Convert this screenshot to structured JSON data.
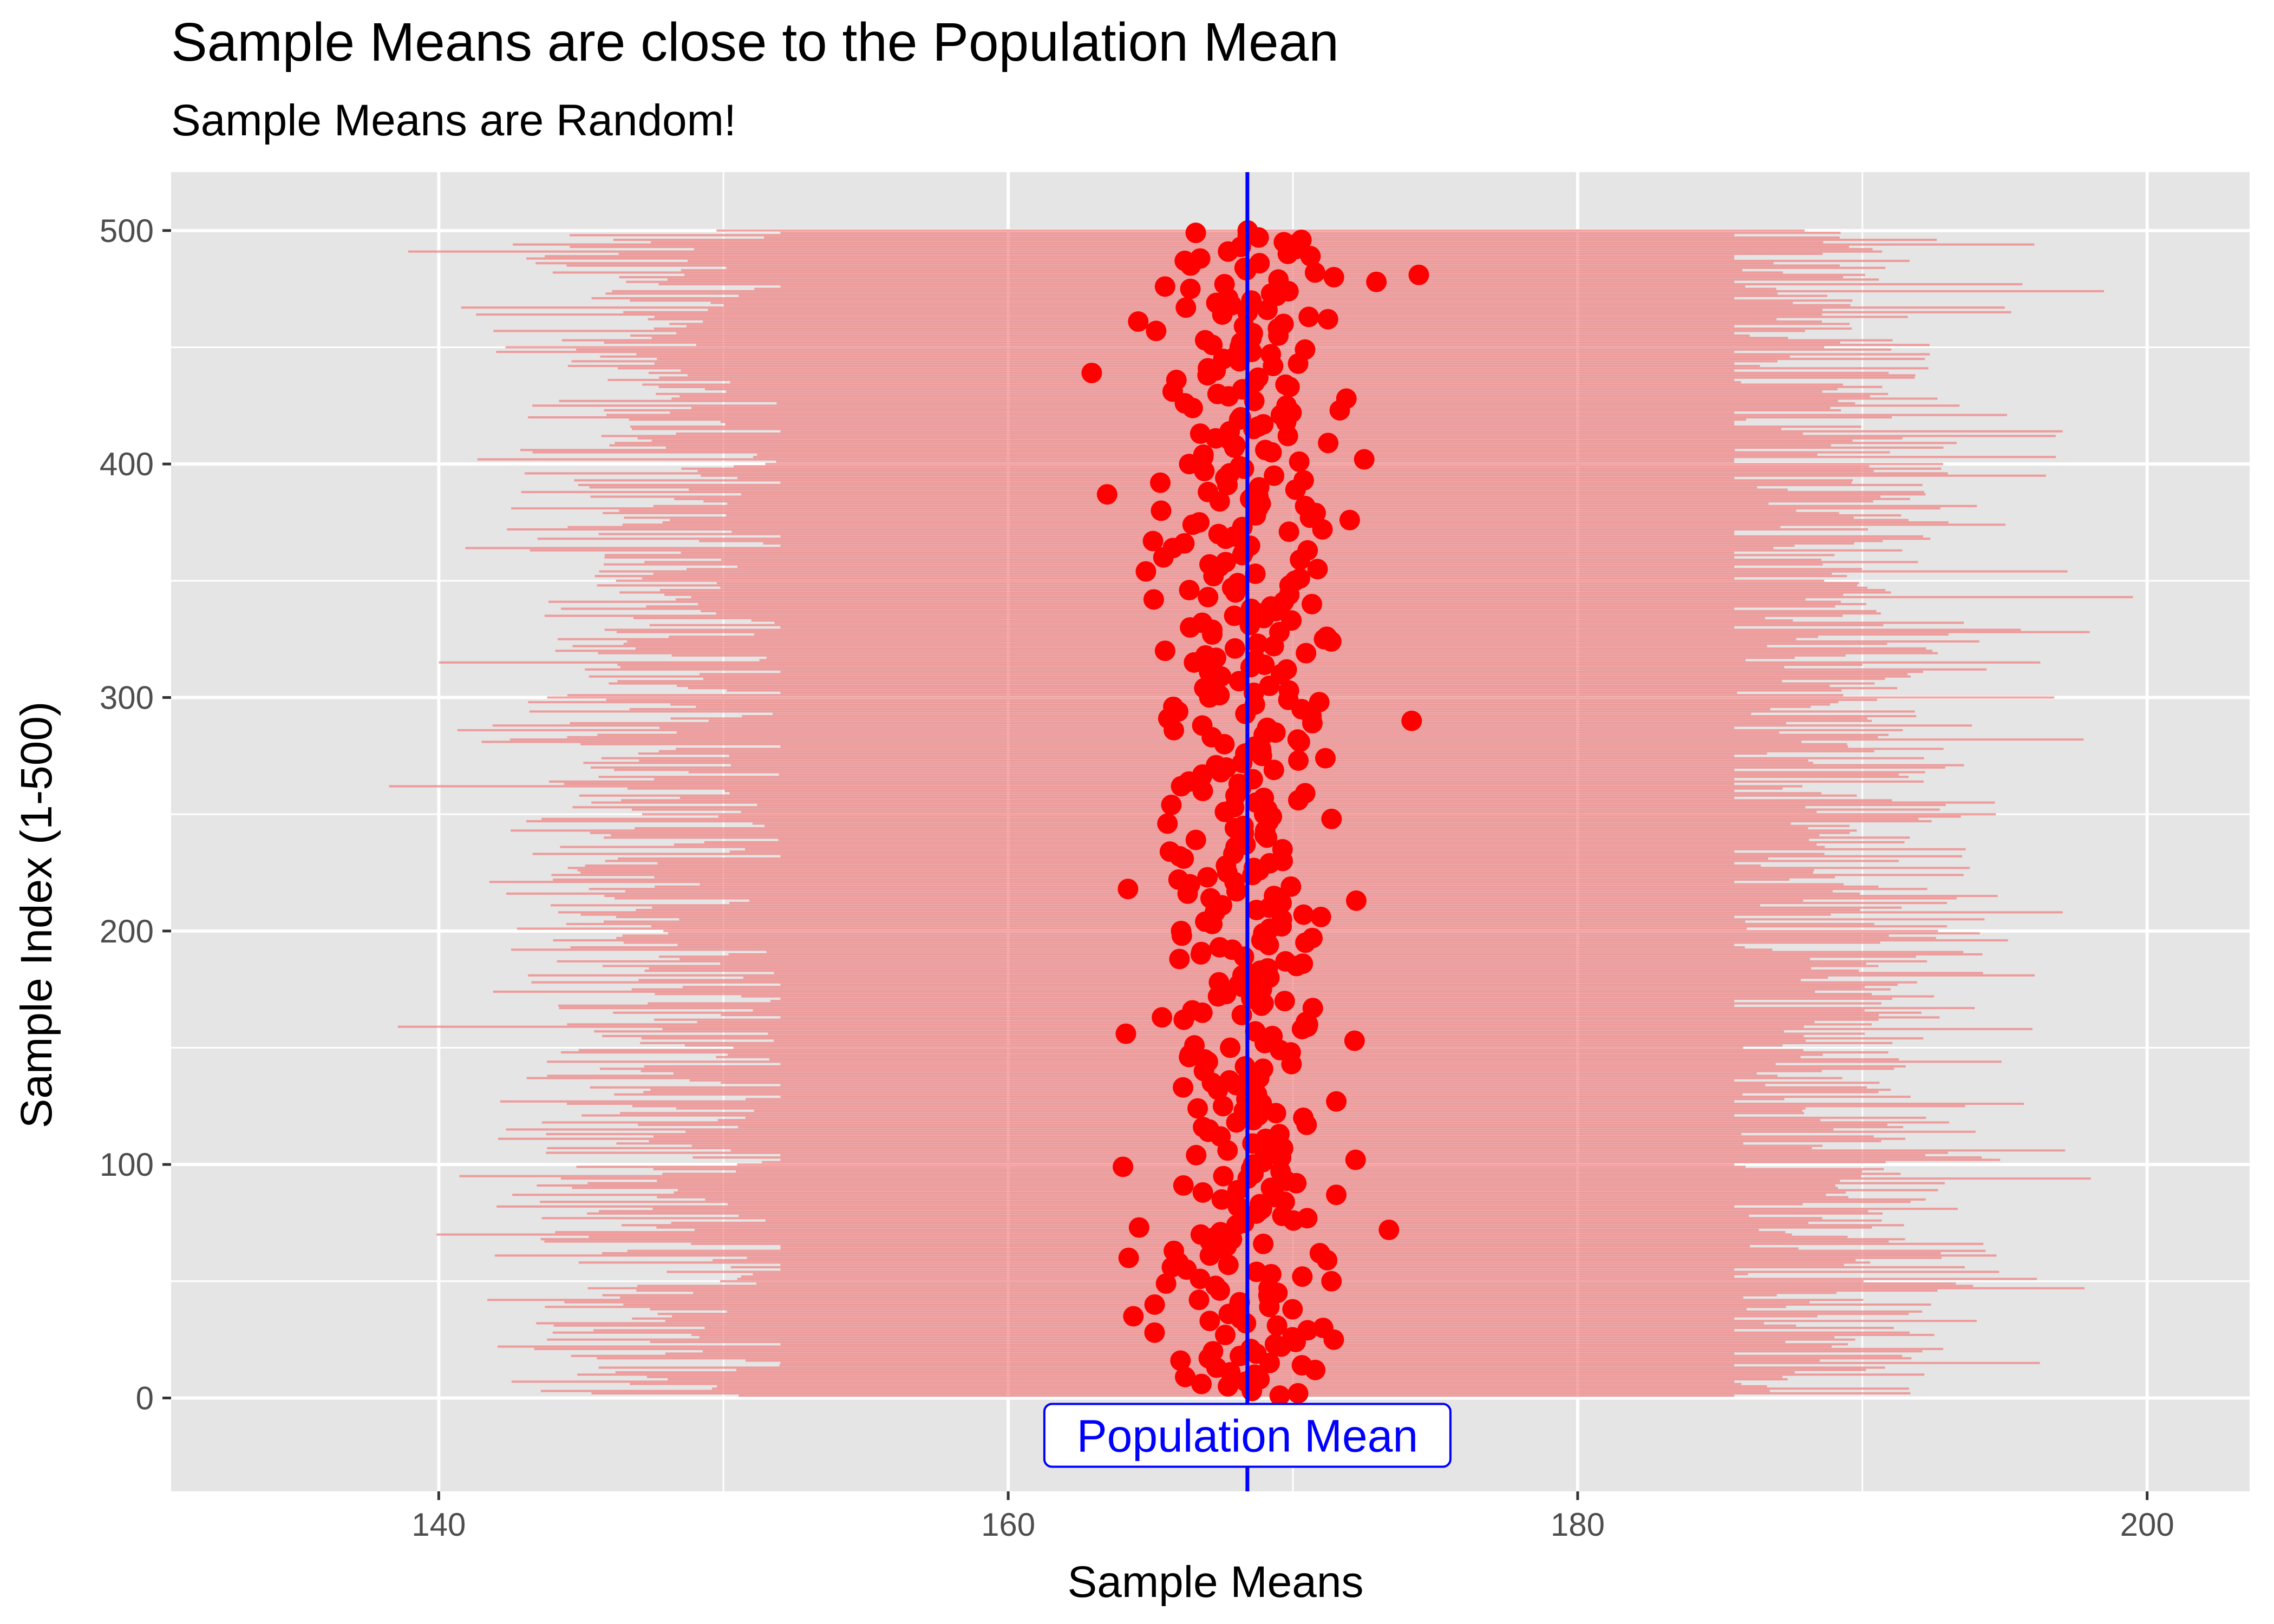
{
  "chart_data": {
    "type": "scatter",
    "title": "Sample Means are close to the Population Mean",
    "subtitle": "Sample Means are Random!",
    "xlabel": "Sample Means",
    "ylabel": "Sample Index (1-500)",
    "xlim": [
      130.6,
      203.6
    ],
    "ylim": [
      -40,
      525
    ],
    "x_ticks": [
      140,
      160,
      180,
      200
    ],
    "y_ticks": [
      0,
      100,
      200,
      300,
      400,
      500
    ],
    "grid": true,
    "legend": "none",
    "population_mean": 168.4,
    "annotation": "Population Mean",
    "n_samples": 500,
    "sample_mean_center": 168.4,
    "sample_mean_spread": 1.7,
    "interval_lower_center": 147.1,
    "interval_upper_center": 189.7,
    "interval_spread": 3.2,
    "interval_range_lower": [
      134.5,
      152.0
    ],
    "interval_range_upper": [
      185.5,
      201.5
    ],
    "colors": {
      "panel_background": "#e5e5e5",
      "gridline": "#ffffff",
      "interval": "#f08080",
      "sample_mean_point": "#ff0000",
      "population_mean_line": "#0000ff"
    }
  }
}
